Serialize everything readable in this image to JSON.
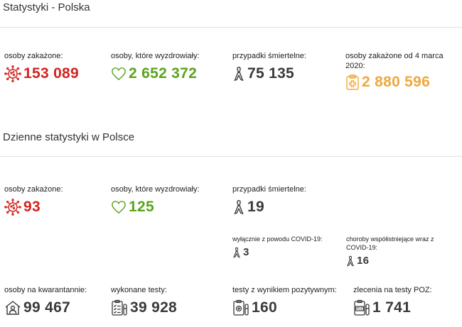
{
  "overall": {
    "title": "Statystyki - Polska",
    "infected": {
      "label": "osoby zakażone:",
      "value": "153 089",
      "icon": "virus-icon"
    },
    "recovered": {
      "label": "osoby, które wyzdrowiały:",
      "value": "2 652 372",
      "icon": "heart-icon"
    },
    "deaths": {
      "label": "przypadki śmiertelne:",
      "value": "75 135",
      "icon": "ribbon-icon"
    },
    "infected_since": {
      "label": "osoby zakażone od 4 marca 2020:",
      "value": "2 880 596",
      "icon": "clipboard-medical-icon"
    }
  },
  "daily": {
    "title": "Dzienne statystyki w Polsce",
    "infected": {
      "label": "osoby zakażone:",
      "value": "93",
      "icon": "virus-icon"
    },
    "recovered": {
      "label": "osoby, które wyzdrowiały:",
      "value": "125",
      "icon": "heart-icon"
    },
    "deaths": {
      "label": "przypadki śmiertelne:",
      "value": "19",
      "icon": "ribbon-icon"
    },
    "deaths_covid_only": {
      "label": "wyłącznie z powodu COVID-19:",
      "value": "3",
      "icon": "ribbon-icon"
    },
    "deaths_comorbid": {
      "label": "choroby współistniejące wraz z COVID-19:",
      "value": "16",
      "icon": "ribbon-icon"
    },
    "quarantine": {
      "label": "osoby na kwarantannie:",
      "value": "99 467",
      "icon": "house-person-icon"
    },
    "tests": {
      "label": "wykonane testy:",
      "value": "39 928",
      "icon": "test-list-icon"
    },
    "positive_tests": {
      "label": "testy z wynikiem pozytywnym:",
      "value": "160",
      "icon": "positive-test-icon"
    },
    "poz_orders": {
      "label": "zlecenia na testy POZ:",
      "value": "1 741",
      "icon": "poz-order-icon"
    }
  },
  "colors": {
    "infected": "#d3231f",
    "recovered": "#5aa31c",
    "deaths": "#3a3a3a",
    "infected_since": "#f0a83c"
  }
}
